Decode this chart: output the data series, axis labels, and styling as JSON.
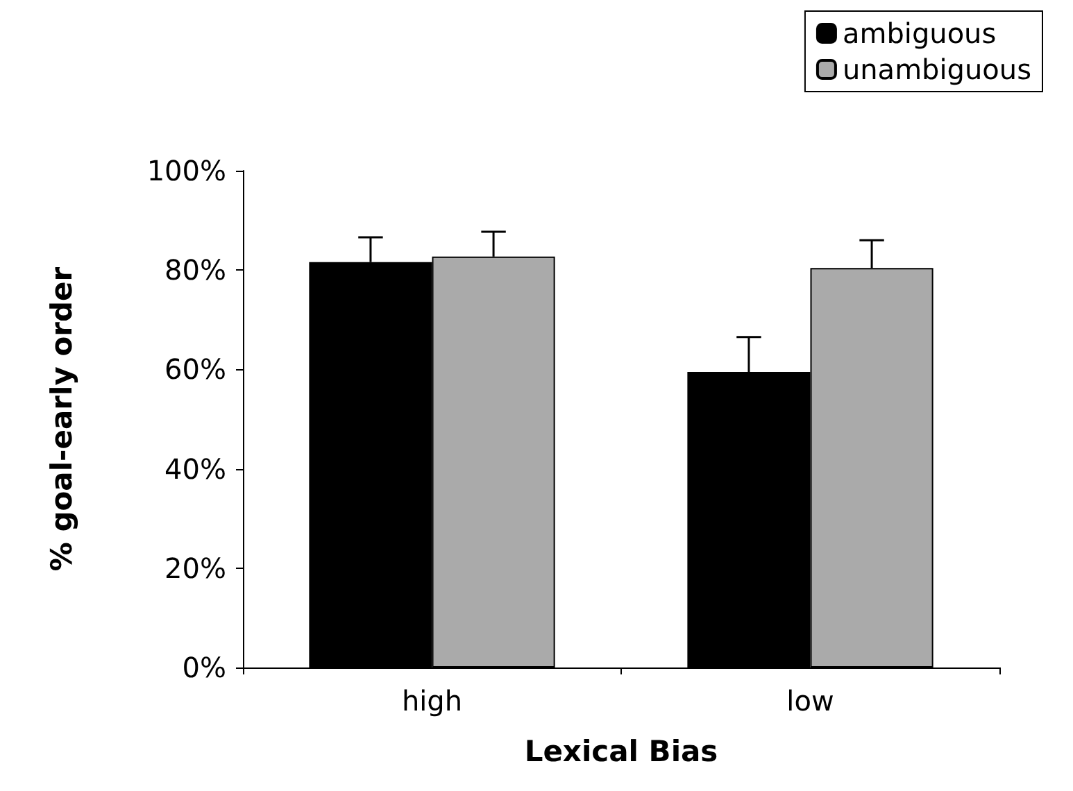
{
  "chart_data": {
    "type": "bar",
    "xlabel": "Lexical Bias",
    "ylabel": "% goal-early order",
    "categories": [
      "high",
      "low"
    ],
    "series": [
      {
        "name": "ambiguous",
        "color": "#000000",
        "values": [
          81.6,
          59.5
        ],
        "errors": [
          [
            81.6,
            86.6
          ],
          [
            59.5,
            66.5
          ]
        ]
      },
      {
        "name": "unambiguous",
        "color": "#aaaaaa",
        "values": [
          82.7,
          80.4
        ],
        "errors": [
          [
            82.7,
            87.7
          ],
          [
            80.4,
            86
          ]
        ]
      }
    ],
    "ylim": [
      0,
      100
    ],
    "yticks": [
      {
        "value": 0,
        "label": "0%"
      },
      {
        "value": 20,
        "label": "20%"
      },
      {
        "value": 40,
        "label": "40%"
      },
      {
        "value": 60,
        "label": "60%"
      },
      {
        "value": 80,
        "label": "80%"
      },
      {
        "value": 100,
        "label": "100%"
      }
    ],
    "grid": false,
    "legend": "top right"
  }
}
